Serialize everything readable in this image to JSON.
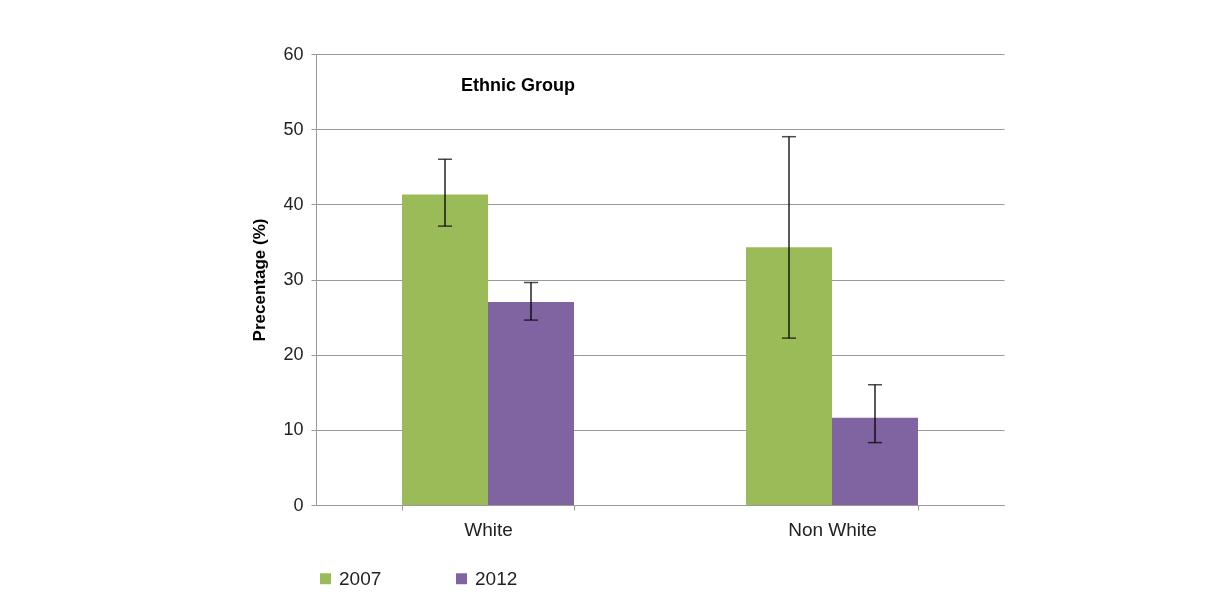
{
  "chart_data": {
    "type": "bar",
    "title": "Ethnic Group",
    "ylabel": "Precentage (%)",
    "categories": [
      "White",
      "Non White"
    ],
    "series": [
      {
        "name": "2007",
        "color": "#9bbb59",
        "values": [
          41.3,
          34.3
        ],
        "errors": [
          [
            37.1,
            46.0
          ],
          [
            22.2,
            49.0
          ]
        ]
      },
      {
        "name": "2012",
        "color": "#8064a2",
        "values": [
          27.0,
          11.6
        ],
        "errors": [
          [
            24.6,
            29.6
          ],
          [
            8.3,
            16.0
          ]
        ]
      }
    ],
    "ylim": [
      0,
      60
    ],
    "yticks": [
      0,
      10,
      20,
      30,
      40,
      50,
      60
    ],
    "grid": "y",
    "legend": "bottom"
  }
}
